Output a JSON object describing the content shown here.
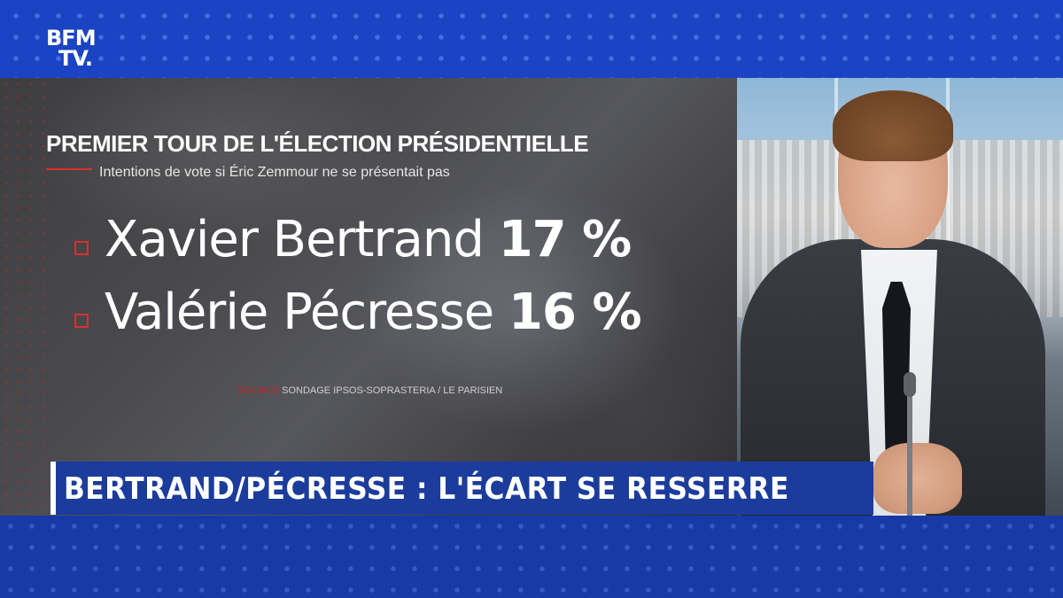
{
  "channel": {
    "logo_line1": "BFM",
    "logo_line2": "TV."
  },
  "graphic": {
    "title": "PREMIER TOUR DE L'ÉLECTION PRÉSIDENTIELLE",
    "subtitle": "Intentions de vote si Éric Zemmour ne se présentait pas",
    "results": [
      {
        "name": "Xavier Bertrand",
        "percent": "17 %"
      },
      {
        "name": "Valérie Pécresse",
        "percent": "16 %"
      }
    ],
    "source_label": "SOURCE",
    "source_text": "SONDAGE IPSOS-SOPRASTERIA / LE PARISIEN"
  },
  "headline": {
    "text": "BERTRAND/PÉCRESSE : L'ÉCART SE RESSERRE"
  },
  "colors": {
    "brand_blue": "#1b44c4",
    "headline_blue": "#1c3c9c",
    "accent_red": "#d8322e"
  }
}
